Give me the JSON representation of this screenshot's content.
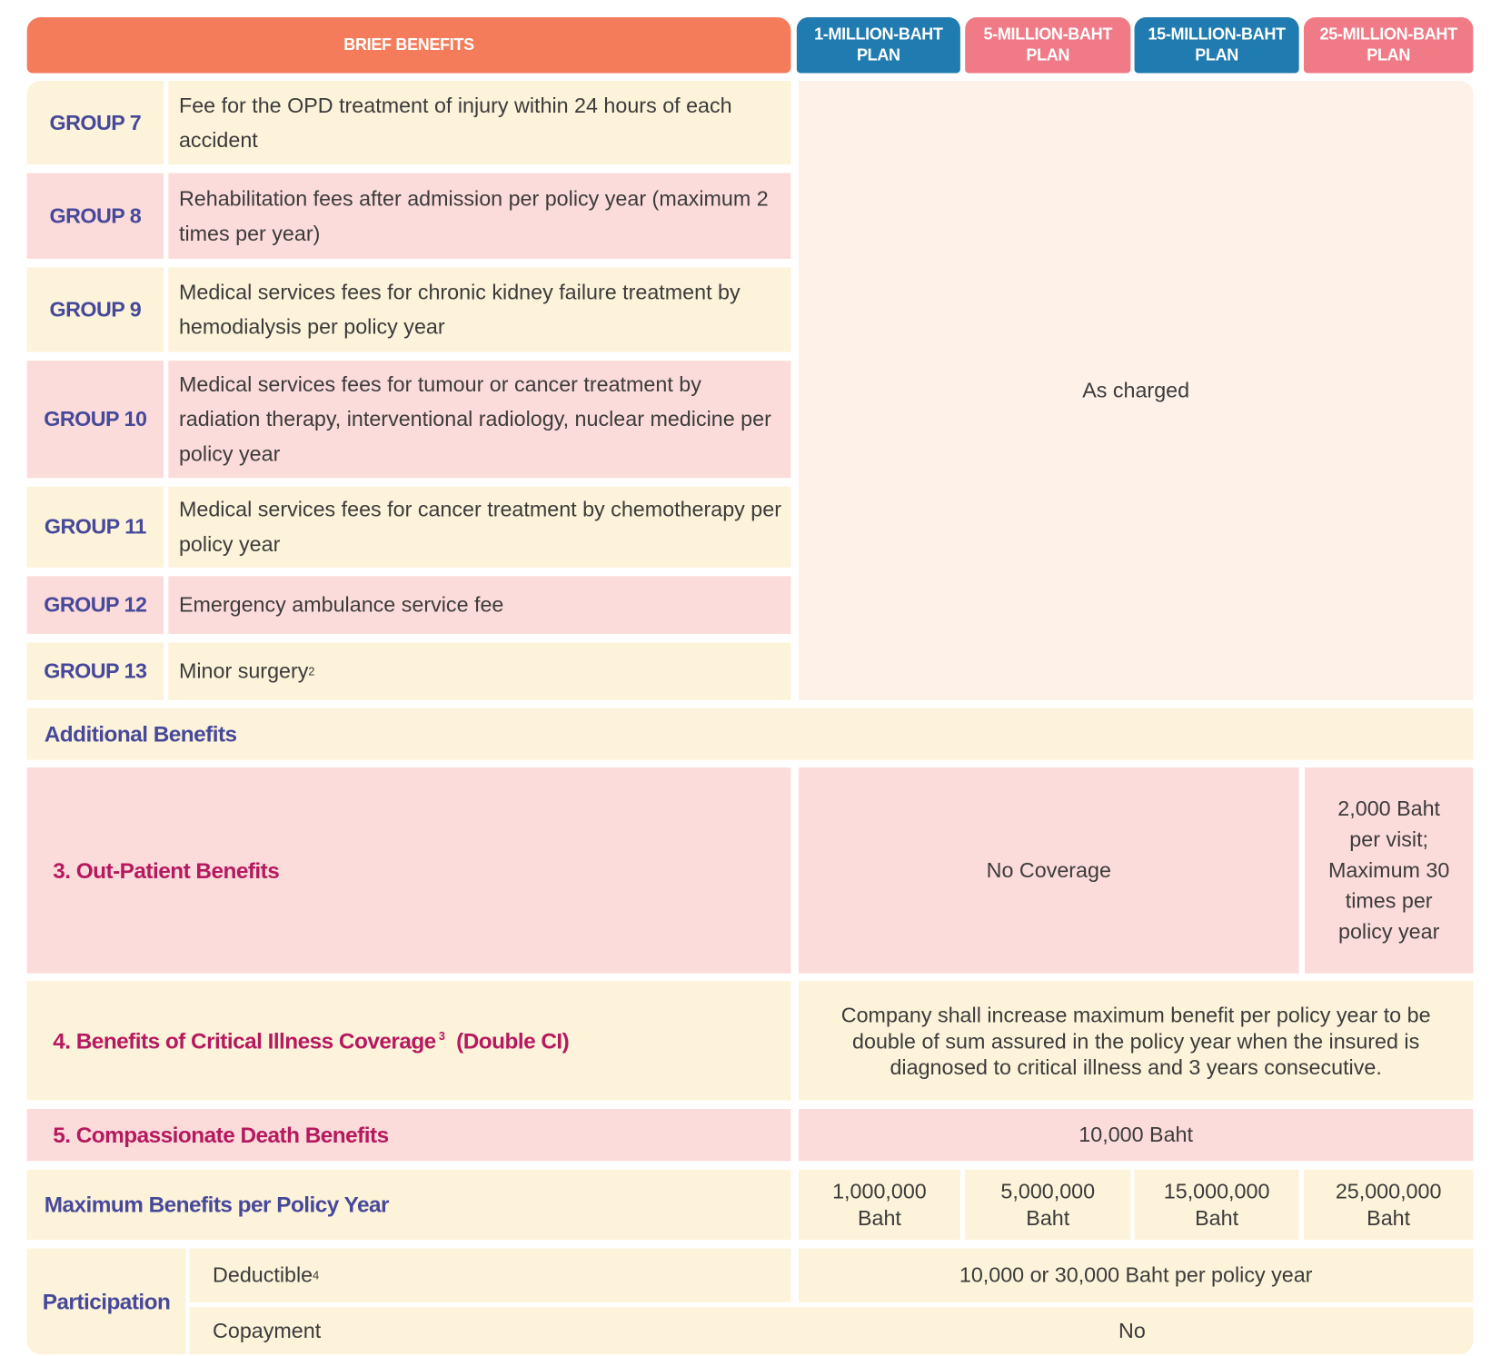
{
  "colors": {
    "brief_header": "#F47C5A",
    "plan_blue": "#1F7BB0",
    "plan_pink": "#F07A86",
    "cream": "#FDF3DA",
    "pink": "#FCDCDA",
    "navy_text": "#46489A",
    "magenta_text": "#B5195F"
  },
  "header": {
    "brief": "BRIEF BENEFITS",
    "plans": [
      {
        "line1": "1-MILLION-BAHT",
        "line2": "PLAN"
      },
      {
        "line1": "5-MILLION-BAHT",
        "line2": "PLAN"
      },
      {
        "line1": "15-MILLION-BAHT",
        "line2": "PLAN"
      },
      {
        "line1": "25-MILLION-BAHT",
        "line2": "PLAN"
      }
    ]
  },
  "groups": [
    {
      "label": "GROUP 7",
      "desc": "Fee for the OPD treatment of injury within 24 hours of each accident"
    },
    {
      "label": "GROUP 8",
      "desc": "Rehabilitation fees after admission per policy year (maximum 2 times per year)"
    },
    {
      "label": "GROUP 9",
      "desc": "Medical services fees for chronic kidney failure treatment by hemodialysis per policy year"
    },
    {
      "label": "GROUP 10",
      "desc": "Medical services fees for tumour or cancer treatment by radiation therapy, interventional radiology, nuclear medicine per policy year"
    },
    {
      "label": "GROUP 11",
      "desc": "Medical services fees for cancer treatment by chemotherapy per policy year"
    },
    {
      "label": "GROUP 12",
      "desc": "Emergency ambulance service fee"
    },
    {
      "label": "GROUP 13",
      "desc": "Minor surgery",
      "sup": "2"
    }
  ],
  "groups_value": "As charged",
  "additional": {
    "title": "Additional Benefits",
    "outpatient": {
      "label": "3. Out-Patient Benefits",
      "value_1_15": "No Coverage",
      "value_25": "2,000 Baht per visit; Maximum 30 times per policy year"
    },
    "ci": {
      "label": "4. Benefits of Critical Illness Coverage",
      "sup": "3",
      "suffix": "(Double CI)",
      "value": "Company shall increase maximum benefit per policy year to be double of sum assured in the policy year when the insured is diagnosed to critical illness and 3 years consecutive."
    },
    "death": {
      "label": "5. Compassionate Death Benefits",
      "value": "10,000 Baht"
    }
  },
  "max_benefits": {
    "label": "Maximum Benefits per Policy Year",
    "values": [
      "1,000,000 Baht",
      "5,000,000 Baht",
      "15,000,000 Baht",
      "25,000,000 Baht"
    ]
  },
  "participation": {
    "label": "Participation",
    "deductible": {
      "label": "Deductible",
      "sup": "4",
      "value": "10,000 or 30,000 Baht per policy year"
    },
    "copayment": {
      "label": "Copayment",
      "value": "No"
    }
  }
}
